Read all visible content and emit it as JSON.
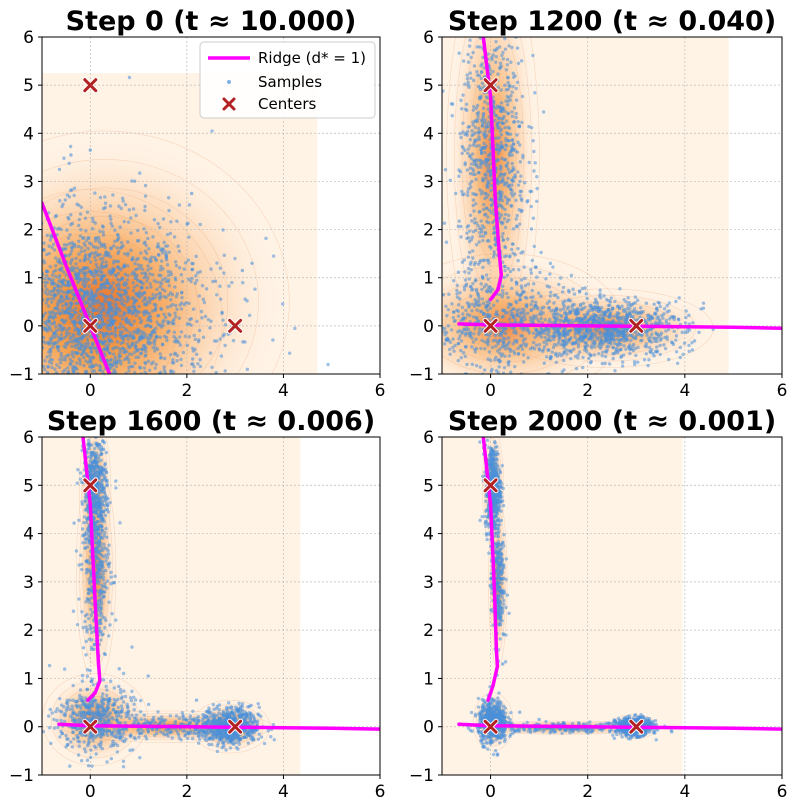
{
  "chart_data": [
    {
      "type": "scatter",
      "title": "Step 0 (t ≈ 10.000)",
      "xlim": [
        -1,
        6
      ],
      "ylim": [
        -1,
        6
      ],
      "xticks": [
        "0",
        "2",
        "4",
        "6"
      ],
      "yticks": [
        "−1",
        "0",
        "1",
        "2",
        "3",
        "4",
        "5",
        "6"
      ],
      "density_extent": {
        "x": [
          -1,
          4.7
        ],
        "y": [
          -1,
          5.25
        ]
      },
      "centers": [
        [
          0,
          0
        ],
        [
          0,
          5
        ],
        [
          3,
          0
        ]
      ],
      "ridge": [
        [
          -1,
          2.55
        ],
        [
          -0.5,
          1.25
        ],
        [
          0,
          0
        ],
        [
          0.4,
          -1
        ]
      ],
      "blobs": [
        {
          "cx": 0,
          "cy": 0.1,
          "sx": 1.0,
          "sy": 1.0,
          "n": 1700
        },
        {
          "cx": 0.3,
          "cy": 0.5,
          "sx": 1.4,
          "sy": 1.3,
          "n": 600
        }
      ],
      "outliers": [
        [
          0,
          3.65
        ],
        [
          -0.4,
          3.55
        ],
        [
          2.1,
          2.75
        ],
        [
          3.35,
          1.3
        ],
        [
          3.15,
          1.15
        ]
      ]
    },
    {
      "type": "scatter",
      "title": "Step 1200 (t ≈ 0.040)",
      "xlim": [
        -1,
        6
      ],
      "ylim": [
        -1,
        6
      ],
      "xticks": [
        "0",
        "2",
        "4",
        "6"
      ],
      "yticks": [
        "−1",
        "0",
        "1",
        "2",
        "3",
        "4",
        "5",
        "6"
      ],
      "density_extent": {
        "x": [
          -1,
          4.9
        ],
        "y": [
          -1,
          6
        ]
      },
      "centers": [
        [
          0,
          0
        ],
        [
          0,
          5
        ],
        [
          3,
          0
        ]
      ],
      "ridge": [
        [
          -0.65,
          0.04
        ],
        [
          0,
          0.02
        ],
        [
          1,
          0.01
        ],
        [
          2,
          0
        ],
        [
          3,
          -0.01
        ],
        [
          4,
          -0.02
        ],
        [
          5,
          -0.03
        ],
        [
          6,
          -0.05
        ]
      ],
      "ridge2": [
        [
          -0.15,
          6
        ],
        [
          0,
          4.75
        ],
        [
          0.1,
          2.6
        ],
        [
          0.18,
          1.5
        ],
        [
          0.22,
          1.05
        ],
        [
          0.15,
          0.75
        ],
        [
          0,
          0.55
        ]
      ],
      "blobs": [
        {
          "cx": 0.05,
          "cy": 3.5,
          "sx": 0.35,
          "sy": 1.55,
          "n": 850
        },
        {
          "cx": 0.3,
          "cy": 0.0,
          "sx": 0.9,
          "sy": 0.55,
          "n": 600
        },
        {
          "cx": 2.4,
          "cy": -0.05,
          "sx": 0.8,
          "sy": 0.3,
          "n": 900
        }
      ],
      "outliers": []
    },
    {
      "type": "scatter",
      "title": "Step 1600 (t ≈ 0.006)",
      "xlim": [
        -1,
        6
      ],
      "ylim": [
        -1,
        6
      ],
      "xticks": [
        "0",
        "2",
        "4",
        "6"
      ],
      "yticks": [
        "−1",
        "0",
        "1",
        "2",
        "3",
        "4",
        "5",
        "6"
      ],
      "density_extent": {
        "x": [
          -1,
          4.35
        ],
        "y": [
          -1,
          6
        ]
      },
      "centers": [
        [
          0,
          0
        ],
        [
          0,
          5
        ],
        [
          3,
          0
        ]
      ],
      "ridge": [
        [
          -0.65,
          0.05
        ],
        [
          0,
          0.02
        ],
        [
          1,
          0.01
        ],
        [
          2,
          0
        ],
        [
          3,
          -0.01
        ],
        [
          4,
          -0.02
        ],
        [
          5,
          -0.03
        ],
        [
          6,
          -0.05
        ]
      ],
      "ridge2": [
        [
          -0.15,
          6
        ],
        [
          0,
          4.6
        ],
        [
          0.1,
          2.6
        ],
        [
          0.17,
          1.3
        ],
        [
          0.2,
          0.95
        ],
        [
          0.1,
          0.7
        ],
        [
          -0.05,
          0.55
        ]
      ],
      "blobs": [
        {
          "cx": 0.1,
          "cy": 4.9,
          "sx": 0.12,
          "sy": 0.55,
          "n": 500
        },
        {
          "cx": 0.12,
          "cy": 3.2,
          "sx": 0.15,
          "sy": 0.85,
          "n": 350
        },
        {
          "cx": 0.1,
          "cy": 0.15,
          "sx": 0.4,
          "sy": 0.35,
          "n": 500
        },
        {
          "cx": 1.6,
          "cy": 0.0,
          "sx": 0.8,
          "sy": 0.12,
          "n": 250
        },
        {
          "cx": 2.9,
          "cy": 0.0,
          "sx": 0.3,
          "sy": 0.2,
          "n": 600
        }
      ],
      "outliers": [
        [
          1.2,
          1.05
        ],
        [
          0.6,
          1.2
        ],
        [
          2.2,
          0.55
        ]
      ]
    },
    {
      "type": "scatter",
      "title": "Step 2000 (t ≈ 0.001)",
      "xlim": [
        -1,
        6
      ],
      "ylim": [
        -1,
        6
      ],
      "xticks": [
        "0",
        "2",
        "4",
        "6"
      ],
      "yticks": [
        "−1",
        "0",
        "1",
        "2",
        "3",
        "4",
        "5",
        "6"
      ],
      "density_extent": {
        "x": [
          -1,
          3.95
        ],
        "y": [
          -1,
          6
        ]
      },
      "centers": [
        [
          0,
          0
        ],
        [
          0,
          5
        ],
        [
          3,
          0
        ]
      ],
      "ridge": [
        [
          -0.65,
          0.05
        ],
        [
          0,
          0.02
        ],
        [
          1,
          0.01
        ],
        [
          2,
          0
        ],
        [
          3,
          -0.01
        ],
        [
          4,
          -0.02
        ],
        [
          5,
          -0.03
        ],
        [
          6,
          -0.05
        ]
      ],
      "ridge2": [
        [
          -0.15,
          6
        ],
        [
          0,
          4.6
        ],
        [
          0.08,
          2.8
        ],
        [
          0.12,
          1.6
        ],
        [
          0.14,
          1.25
        ],
        [
          0.05,
          0.85
        ],
        [
          -0.05,
          0.55
        ]
      ],
      "blobs": [
        {
          "cx": 0.05,
          "cy": 4.95,
          "sx": 0.08,
          "sy": 0.45,
          "n": 500
        },
        {
          "cx": 0.15,
          "cy": 3.0,
          "sx": 0.07,
          "sy": 0.65,
          "n": 250
        },
        {
          "cx": 0.05,
          "cy": 0.1,
          "sx": 0.15,
          "sy": 0.22,
          "n": 550
        },
        {
          "cx": 1.5,
          "cy": -0.02,
          "sx": 0.7,
          "sy": 0.05,
          "n": 220
        },
        {
          "cx": 2.95,
          "cy": 0.0,
          "sx": 0.18,
          "sy": 0.09,
          "n": 650
        }
      ],
      "outliers": [
        [
          0.6,
          0.3
        ],
        [
          0.25,
          1.3
        ],
        [
          1.0,
          0.15
        ]
      ]
    }
  ],
  "legend": {
    "ridge_label": "Ridge (d* = 1)",
    "samples_label": "Samples",
    "centers_label": "Centers"
  },
  "colors": {
    "ridge": "#ff00ff",
    "samples": "#4a90d9",
    "centers": "#b22222",
    "density": "#f28e2b",
    "density_bg": "#fff3e6",
    "grid": "#bbbbbb"
  }
}
